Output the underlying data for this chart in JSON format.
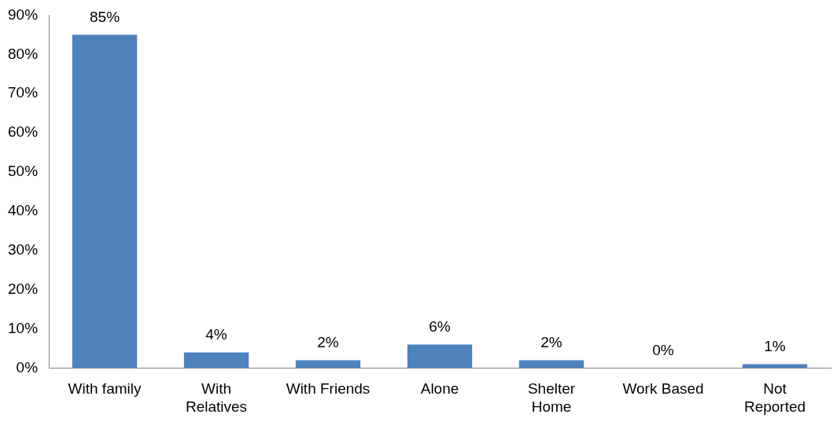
{
  "chart_data": {
    "type": "bar",
    "categories": [
      "With family",
      "With\nRelatives",
      "With Friends",
      "Alone",
      "Shelter\nHome",
      "Work Based",
      "Not\nReported"
    ],
    "values": [
      85,
      4,
      2,
      6,
      2,
      0,
      1
    ],
    "value_labels": [
      "85%",
      "4%",
      "2%",
      "6%",
      "2%",
      "0%",
      "1%"
    ],
    "color": "#4f81bd",
    "ylim": [
      0,
      90
    ],
    "yticks": [
      {
        "value": 0,
        "label": "0%"
      },
      {
        "value": 10,
        "label": "10%"
      },
      {
        "value": 20,
        "label": "20%"
      },
      {
        "value": 30,
        "label": "30%"
      },
      {
        "value": 40,
        "label": "40%"
      },
      {
        "value": 50,
        "label": "50%"
      },
      {
        "value": 60,
        "label": "60%"
      },
      {
        "value": 70,
        "label": "70%"
      },
      {
        "value": 80,
        "label": "80%"
      },
      {
        "value": 90,
        "label": "90%"
      }
    ],
    "grid": false,
    "legend": false
  }
}
